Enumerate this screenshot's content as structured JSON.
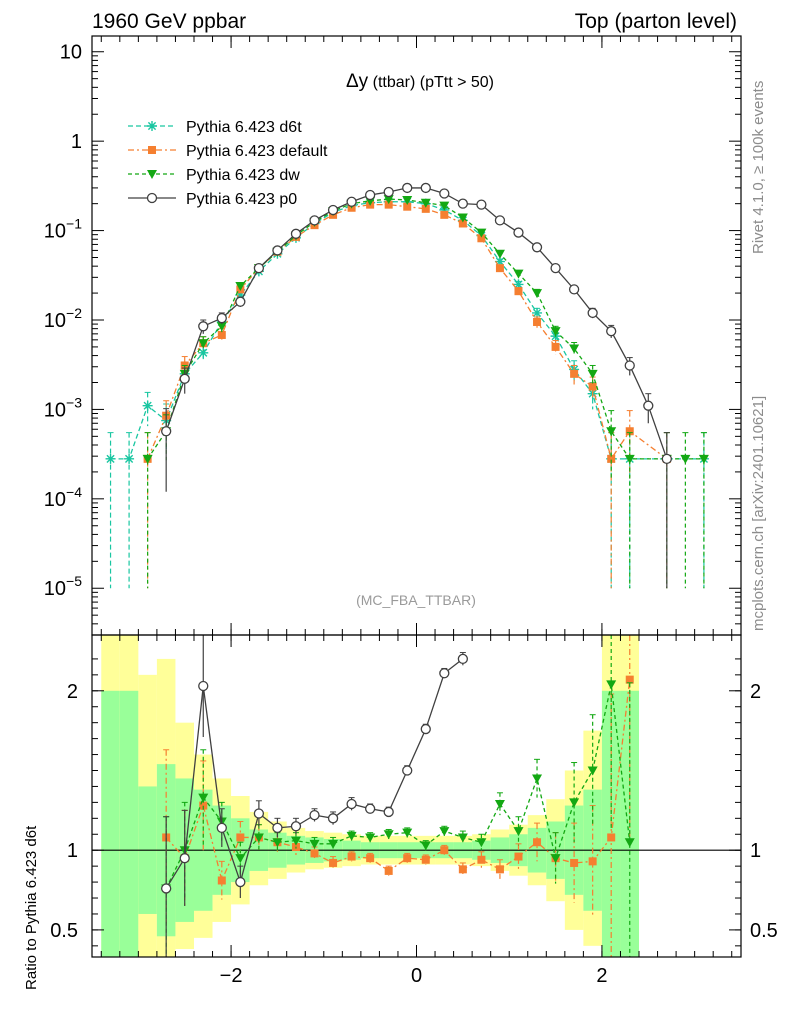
{
  "header": {
    "left": "1960 GeV ppbar",
    "right": "Top (parton level)"
  },
  "side": {
    "rivet": "Rivet 4.1.0, ≥ 100k events",
    "mcplots": "mcplots.cern.ch [arXiv:2401.10621]"
  },
  "plot_title": {
    "main": "Δy",
    "sub": " (ttbar) (pTtt > 50)"
  },
  "analysis_label": "(MC_FBA_TTBAR)",
  "ratio_ylabel": "Ratio to Pythia 6.423 d6t",
  "top_yticks": [
    {
      "v": 10,
      "label": "10",
      "exp": ""
    },
    {
      "v": 1,
      "label": "1",
      "exp": ""
    },
    {
      "v": 0.1,
      "label": "10",
      "exp": "−1"
    },
    {
      "v": 0.01,
      "label": "10",
      "exp": "−2"
    },
    {
      "v": 0.001,
      "label": "10",
      "exp": "−3"
    },
    {
      "v": 0.0001,
      "label": "10",
      "exp": "−4"
    },
    {
      "v": 1e-05,
      "label": "10",
      "exp": "−5"
    }
  ],
  "ratio_yticks": [
    {
      "v": 2,
      "label": "2"
    },
    {
      "v": 1,
      "label": "1"
    },
    {
      "v": 0.5,
      "label": "0.5"
    }
  ],
  "xticks": [
    {
      "v": -2,
      "label": "−2"
    },
    {
      "v": 0,
      "label": "0"
    },
    {
      "v": 2,
      "label": "2"
    }
  ],
  "chart_data": {
    "type": "line",
    "title": "Δy (ttbar) (pTtt > 50)",
    "xlabel": "",
    "ylabel": "",
    "xlim": [
      -3.5,
      3.5
    ],
    "ylim": [
      3e-06,
      15
    ],
    "yscale": "log",
    "ratio_ylim": [
      0.33,
      2.35
    ],
    "ratio_ylabel": "Ratio to Pythia 6.423 d6t",
    "x": [
      -3.3,
      -3.1,
      -2.9,
      -2.7,
      -2.5,
      -2.3,
      -2.1,
      -1.9,
      -1.7,
      -1.5,
      -1.3,
      -1.1,
      -0.9,
      -0.7,
      -0.5,
      -0.3,
      -0.1,
      0.1,
      0.3,
      0.5,
      0.7,
      0.9,
      1.1,
      1.3,
      1.5,
      1.7,
      1.9,
      2.1,
      2.3,
      2.5,
      2.7,
      2.9,
      3.1
    ],
    "series": [
      {
        "name": "Pythia 6.423 d6t",
        "color": "#19c6a1",
        "marker": "star",
        "dash": "5,3",
        "values": [
          0.00028,
          0.00028,
          0.0011,
          0.00075,
          0.0025,
          0.0043,
          0.0095,
          0.019,
          0.035,
          0.055,
          0.083,
          0.12,
          0.16,
          0.19,
          0.205,
          0.21,
          0.21,
          0.2,
          0.17,
          0.13,
          0.088,
          0.045,
          0.025,
          0.012,
          0.0066,
          0.0028,
          0.0015,
          0.00028,
          0.00028,
          null,
          null,
          null,
          0.00028
        ],
        "errors": [
          0.00027,
          0.00027,
          0.00045,
          0.0004,
          0.0006,
          0.0008,
          0.0012,
          0.0018,
          0.0025,
          0.003,
          0.0035,
          0.004,
          0.005,
          0.005,
          0.005,
          0.005,
          0.005,
          0.005,
          0.005,
          0.004,
          0.004,
          0.003,
          0.002,
          0.0015,
          0.0012,
          0.0007,
          0.0005,
          0.00027,
          0.00027,
          null,
          null,
          null,
          0.00027
        ]
      },
      {
        "name": "Pythia 6.423 default",
        "color": "#f57f30",
        "marker": "square",
        "dash": "6,3,2,3",
        "values": [
          null,
          null,
          0.00028,
          0.00085,
          0.0031,
          0.0055,
          0.0068,
          0.022,
          0.038,
          0.058,
          0.085,
          0.115,
          0.15,
          0.18,
          0.195,
          0.195,
          0.185,
          0.175,
          0.15,
          0.12,
          0.082,
          0.038,
          0.021,
          0.0095,
          0.005,
          0.0025,
          0.0018,
          0.00028,
          0.00057,
          null,
          0.00028,
          null,
          null
        ],
        "errors": [
          null,
          null,
          0.00027,
          0.0004,
          0.0008,
          0.001,
          0.0012,
          0.002,
          0.0025,
          0.003,
          0.0035,
          0.004,
          0.005,
          0.005,
          0.005,
          0.005,
          0.005,
          0.005,
          0.005,
          0.004,
          0.004,
          0.003,
          0.002,
          0.0013,
          0.0009,
          0.0006,
          0.0005,
          0.00027,
          0.0004,
          null,
          0.00027,
          null,
          null
        ]
      },
      {
        "name": "Pythia 6.423 dw",
        "color": "#13a813",
        "marker": "triangle-down",
        "dash": "4,3",
        "values": [
          null,
          null,
          0.00028,
          0.00057,
          0.0025,
          0.0055,
          0.0085,
          0.024,
          0.038,
          0.058,
          0.088,
          0.125,
          0.165,
          0.2,
          0.215,
          0.225,
          0.22,
          0.205,
          0.19,
          0.14,
          0.095,
          0.055,
          0.033,
          0.02,
          0.0075,
          0.0048,
          0.0025,
          0.00057,
          0.00028,
          null,
          0.00028,
          0.00028,
          0.00028
        ],
        "errors": [
          null,
          null,
          0.00027,
          0.0003,
          0.0006,
          0.001,
          0.0012,
          0.002,
          0.0025,
          0.003,
          0.0035,
          0.004,
          0.005,
          0.005,
          0.005,
          0.005,
          0.005,
          0.005,
          0.005,
          0.004,
          0.004,
          0.003,
          0.0025,
          0.002,
          0.001,
          0.0008,
          0.0006,
          0.0004,
          0.00027,
          null,
          0.00027,
          0.00027,
          0.00027
        ]
      },
      {
        "name": "Pythia 6.423 p0",
        "color": "#404040",
        "marker": "circle-open",
        "dash": "",
        "values": [
          null,
          null,
          null,
          0.00057,
          0.0022,
          0.0085,
          0.0105,
          0.016,
          0.038,
          0.06,
          0.092,
          0.13,
          0.17,
          0.21,
          0.25,
          0.27,
          0.3,
          0.3,
          0.26,
          0.2,
          0.195,
          0.13,
          0.095,
          0.065,
          0.038,
          0.022,
          0.012,
          0.0075,
          0.0031,
          0.0011,
          0.00028,
          null,
          null
        ],
        "errors": [
          null,
          null,
          null,
          0.00045,
          0.0007,
          0.0015,
          0.0015,
          0.002,
          0.0025,
          0.003,
          0.004,
          0.004,
          0.005,
          0.005,
          0.005,
          0.005,
          0.006,
          0.006,
          0.005,
          0.005,
          0.005,
          0.004,
          0.004,
          0.003,
          0.0025,
          0.002,
          0.0015,
          0.0012,
          0.0007,
          0.0004,
          0.00027,
          null,
          null
        ]
      }
    ],
    "ratio": {
      "reference": "Pythia 6.423 d6t",
      "band_edges": [
        -3.4,
        -3.2,
        -3.0,
        -2.8,
        -2.6,
        -2.4,
        -2.2,
        -2.0,
        -1.8,
        -1.6,
        -1.4,
        -1.2,
        -1.0,
        -0.8,
        -0.6,
        -0.4,
        -0.2,
        0.0,
        0.2,
        0.4,
        0.6,
        0.8,
        1.0,
        1.2,
        1.4,
        1.6,
        1.8,
        2.0,
        2.2,
        2.4
      ],
      "band_stat_low": [
        0.0,
        0.0,
        0.6,
        0.46,
        0.55,
        0.62,
        0.72,
        0.8,
        0.87,
        0.89,
        0.91,
        0.92,
        0.93,
        0.94,
        0.95,
        0.95,
        0.95,
        0.95,
        0.95,
        0.95,
        0.94,
        0.92,
        0.9,
        0.86,
        0.82,
        0.72,
        0.62,
        0.0,
        0.0
      ],
      "band_stat_high": [
        2.0,
        2.0,
        1.4,
        1.54,
        1.45,
        1.38,
        1.28,
        1.2,
        1.13,
        1.11,
        1.09,
        1.08,
        1.07,
        1.06,
        1.05,
        1.05,
        1.05,
        1.05,
        1.05,
        1.05,
        1.06,
        1.08,
        1.1,
        1.14,
        1.18,
        1.28,
        1.38,
        2.0,
        2.0
      ],
      "band_tot_low": [
        0.0,
        0.0,
        0.3,
        0.3,
        0.38,
        0.45,
        0.55,
        0.66,
        0.78,
        0.82,
        0.86,
        0.88,
        0.89,
        0.9,
        0.91,
        0.91,
        0.91,
        0.91,
        0.91,
        0.91,
        0.9,
        0.87,
        0.84,
        0.78,
        0.68,
        0.5,
        0.4,
        0.0,
        0.0
      ],
      "band_tot_high": [
        2.35,
        2.35,
        2.1,
        2.2,
        1.8,
        1.6,
        1.45,
        1.34,
        1.24,
        1.18,
        1.14,
        1.12,
        1.11,
        1.1,
        1.09,
        1.09,
        1.09,
        1.09,
        1.09,
        1.09,
        1.1,
        1.13,
        1.16,
        1.22,
        1.32,
        1.5,
        1.75,
        2.35,
        2.35
      ],
      "series": [
        {
          "name": "Pythia 6.423 default",
          "x": [
            -2.7,
            -2.5,
            -2.3,
            -2.1,
            -1.9,
            -1.7,
            -1.5,
            -1.3,
            -1.1,
            -0.9,
            -0.7,
            -0.5,
            -0.3,
            -0.1,
            0.1,
            0.3,
            0.5,
            0.7,
            0.9,
            1.1,
            1.3,
            1.5,
            1.7,
            1.9,
            2.1,
            2.3
          ],
          "values": [
            1.08,
            0.95,
            1.28,
            0.81,
            1.08,
            1.08,
            1.05,
            1.02,
            0.98,
            0.92,
            0.96,
            0.95,
            0.87,
            0.95,
            0.94,
            1.0,
            0.88,
            0.94,
            0.88,
            0.96,
            1.05,
            0.95,
            0.92,
            0.93,
            1.08,
            2.07
          ],
          "errors": [
            0.55,
            0.3,
            0.28,
            0.12,
            0.1,
            0.08,
            0.06,
            0.05,
            0.04,
            0.04,
            0.03,
            0.03,
            0.03,
            0.03,
            0.03,
            0.03,
            0.04,
            0.05,
            0.06,
            0.08,
            0.12,
            0.16,
            0.25,
            0.35,
            0.9,
            1.0
          ]
        },
        {
          "name": "Pythia 6.423 dw",
          "x": [
            -2.7,
            -2.5,
            -2.3,
            -2.1,
            -1.9,
            -1.7,
            -1.5,
            -1.3,
            -1.1,
            -0.9,
            -0.7,
            -0.5,
            -0.3,
            -0.1,
            0.1,
            0.3,
            0.5,
            0.7,
            0.9,
            1.1,
            1.3,
            1.5,
            1.7,
            1.9,
            2.1,
            2.3
          ],
          "values": [
            0.76,
            1.0,
            1.33,
            1.18,
            0.95,
            1.08,
            1.05,
            1.06,
            1.04,
            1.04,
            1.09,
            1.08,
            1.1,
            1.11,
            1.03,
            1.12,
            1.08,
            1.05,
            1.29,
            1.12,
            1.45,
            0.95,
            1.3,
            1.5,
            2.04,
            1.05
          ],
          "errors": [
            0.45,
            0.3,
            0.3,
            0.12,
            0.1,
            0.08,
            0.06,
            0.05,
            0.04,
            0.04,
            0.03,
            0.03,
            0.03,
            0.03,
            0.03,
            0.03,
            0.04,
            0.05,
            0.07,
            0.09,
            0.12,
            0.16,
            0.25,
            0.35,
            0.9,
            1.0
          ]
        },
        {
          "name": "Pythia 6.423 p0",
          "x": [
            -2.7,
            -2.5,
            -2.3,
            -2.1,
            -1.9,
            -1.7,
            -1.5,
            -1.3,
            -1.1,
            -0.9,
            -0.7,
            -0.5,
            -0.3,
            -0.1,
            0.1,
            0.3,
            0.5
          ],
          "values": [
            0.76,
            0.95,
            2.03,
            1.14,
            0.8,
            1.23,
            1.14,
            1.15,
            1.22,
            1.2,
            1.29,
            1.26,
            1.24,
            1.5,
            1.76,
            2.11,
            2.2
          ],
          "errors": [
            0.45,
            0.3,
            0.32,
            0.12,
            0.1,
            0.08,
            0.06,
            0.05,
            0.04,
            0.04,
            0.04,
            0.03,
            0.03,
            0.03,
            0.03,
            0.03,
            0.04
          ]
        }
      ]
    }
  }
}
